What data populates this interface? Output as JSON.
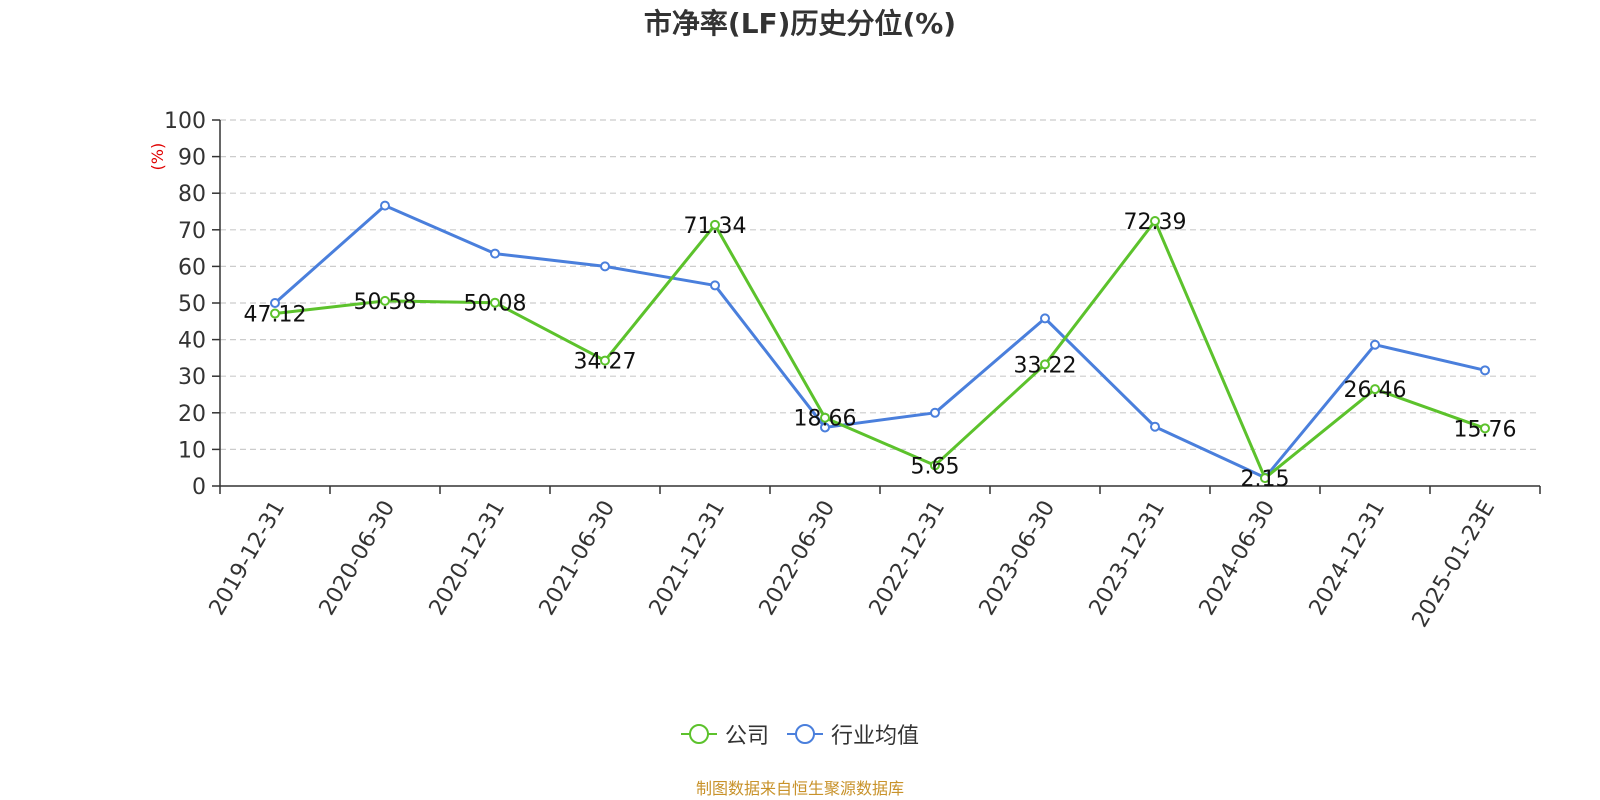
{
  "chart_data": {
    "type": "line",
    "title": "市净率(LF)历史分位(%)",
    "ylabel": "(%)",
    "xlabel": "",
    "ylim": [
      0,
      100
    ],
    "yticks": [
      0,
      10,
      20,
      30,
      40,
      50,
      60,
      70,
      80,
      90,
      100
    ],
    "grid": true,
    "legend_position": "bottom",
    "categories": [
      "2019-12-31",
      "2020-06-30",
      "2020-12-31",
      "2021-06-30",
      "2021-12-31",
      "2022-06-30",
      "2022-12-31",
      "2023-06-30",
      "2023-12-31",
      "2024-06-30",
      "2024-12-31",
      "2025-01-23E"
    ],
    "series": [
      {
        "name": "公司",
        "color": "#5cc22c",
        "values": [
          47.12,
          50.58,
          50.08,
          34.27,
          71.34,
          18.66,
          5.65,
          33.22,
          72.39,
          2.15,
          26.46,
          15.76
        ],
        "data_labels": [
          "47.12",
          "50.58",
          "50.08",
          "34.27",
          "71.34",
          "18.66",
          "5.65",
          "33.22",
          "72.39",
          "2.15",
          "26.46",
          "15.76"
        ]
      },
      {
        "name": "行业均值",
        "color": "#4a7fdc",
        "values": [
          50.0,
          76.6,
          63.5,
          60.0,
          54.8,
          16.0,
          20.0,
          45.8,
          16.2,
          2.3,
          38.6,
          31.6
        ]
      }
    ]
  },
  "source_note": "制图数据来自恒生聚源数据库"
}
